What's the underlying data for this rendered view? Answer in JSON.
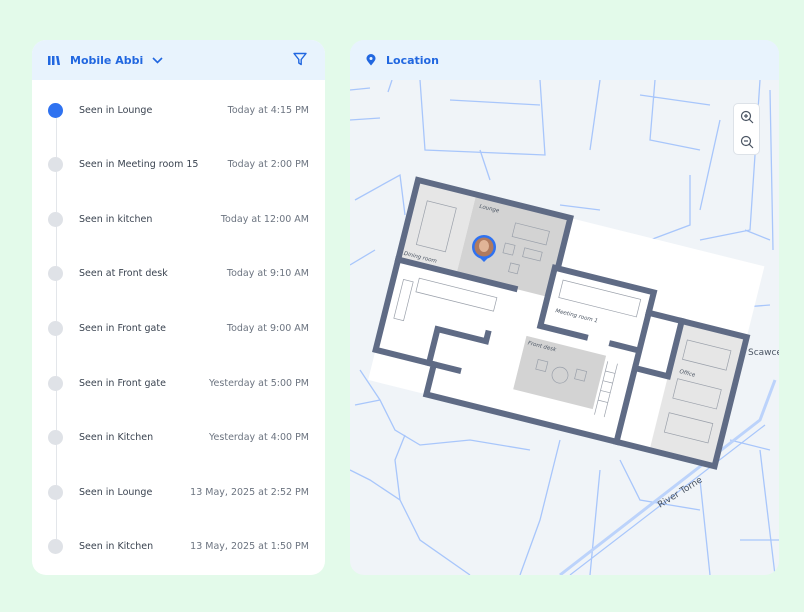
{
  "list_panel": {
    "title": "Mobile Abbi",
    "icons": {
      "logo": "bars-logo-icon",
      "dropdown": "chevron-down-icon",
      "filter": "filter-icon"
    },
    "items": [
      {
        "label": "Seen in Lounge",
        "time": "Today at 4:15 PM",
        "active": true
      },
      {
        "label": "Seen in Meeting room 15",
        "time": "Today at 2:00 PM"
      },
      {
        "label": "Seen in kitchen",
        "time": "Today at 12:00 AM"
      },
      {
        "label": "Seen at Front desk",
        "time": "Today at 9:10 AM"
      },
      {
        "label": "Seen in Front gate",
        "time": "Today at 9:00 AM"
      },
      {
        "label": "Seen in Front gate",
        "time": "Yesterday at 5:00 PM"
      },
      {
        "label": "Seen in Kitchen",
        "time": "Yesterday at 4:00 PM"
      },
      {
        "label": "Seen in Lounge",
        "time": "13 May, 2025 at 2:52 PM"
      },
      {
        "label": "Seen in Kitchen",
        "time": "13 May, 2025 at 1:50 PM"
      }
    ]
  },
  "map_panel": {
    "title": "Location",
    "icons": {
      "header": "location-pin-icon",
      "zoom_in": "zoom-in-icon",
      "zoom_out": "zoom-out-icon"
    },
    "rooms": {
      "lounge": "Lounge",
      "dining": "Dining room",
      "meeting": "Meeting room 1",
      "front_desk": "Front desk",
      "office": "Office"
    },
    "streets": {
      "river": "River Torne",
      "scawcett": "Scawcett"
    }
  },
  "colors": {
    "accent": "#2f72f0",
    "wall": "#5f6b85",
    "road": "#a8c6fb",
    "room_grey": "#d3d3d3"
  }
}
